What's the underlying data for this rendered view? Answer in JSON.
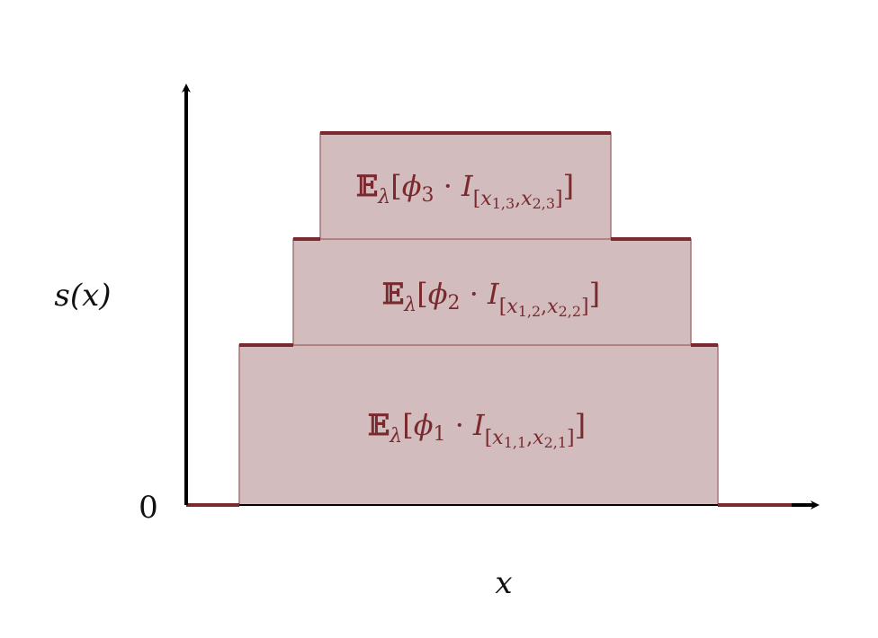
{
  "diagram": {
    "y_axis_label": "s(x)",
    "x_axis_label": "x",
    "origin_label": "0",
    "colors": {
      "axis": "#000000",
      "block_fill": "#d3bcbd",
      "block_edge": "#a87477",
      "step_line": "#7a2a2e",
      "text": "#7a2a2e"
    },
    "blocks": [
      {
        "level": 1,
        "label": {
          "E": "𝔼",
          "lambda": "λ",
          "open": "[",
          "phi": "ϕ",
          "phi_sub": "1",
          "dot": " · ",
          "I": "I",
          "interval": "[x1,1, x2,1]",
          "i_open": "[",
          "x1": "x",
          "x1_sub": "1,1",
          "comma": ",",
          "x2": "x",
          "x2_sub": "2,1",
          "i_close": "]",
          "close": "]"
        }
      },
      {
        "level": 2,
        "label": {
          "E": "𝔼",
          "lambda": "λ",
          "open": "[",
          "phi": "ϕ",
          "phi_sub": "2",
          "dot": " · ",
          "I": "I",
          "interval": "[x1,2, x2,2]",
          "i_open": "[",
          "x1": "x",
          "x1_sub": "1,2",
          "comma": ",",
          "x2": "x",
          "x2_sub": "2,2",
          "i_close": "]",
          "close": "]"
        }
      },
      {
        "level": 3,
        "label": {
          "E": "𝔼",
          "lambda": "λ",
          "open": "[",
          "phi": "ϕ",
          "phi_sub": "3",
          "dot": " · ",
          "I": "I",
          "interval": "[x1,3, x2,3]",
          "i_open": "[",
          "x1": "x",
          "x1_sub": "1,3",
          "comma": ",",
          "x2": "x",
          "x2_sub": "2,3",
          "i_close": "]",
          "close": "]"
        }
      }
    ]
  }
}
